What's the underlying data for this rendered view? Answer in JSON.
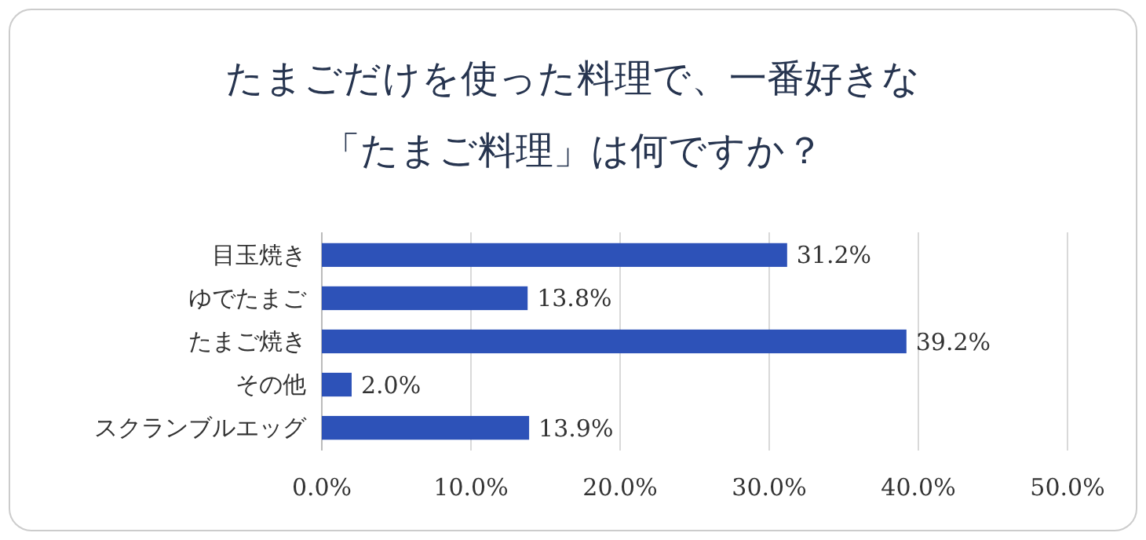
{
  "chart_data": {
    "type": "bar",
    "orientation": "horizontal",
    "title": "たまごだけを使った料理で、一番好きな「たまご料理」は何ですか？",
    "categories": [
      "目玉焼き",
      "ゆでたまご",
      "たまご焼き",
      "その他",
      "スクランブルエッグ"
    ],
    "values": [
      31.2,
      13.8,
      39.2,
      2.0,
      13.9
    ],
    "value_labels": [
      "31.2%",
      "13.8%",
      "39.2%",
      "2.0%",
      "13.9%"
    ],
    "color": "#2d52b8",
    "xlim": [
      0,
      50
    ],
    "xticks": [
      {
        "value": 0,
        "label": "0.0%"
      },
      {
        "value": 10,
        "label": "10.0%"
      },
      {
        "value": 20,
        "label": "20.0%"
      },
      {
        "value": 30,
        "label": "30.0%"
      },
      {
        "value": 40,
        "label": "40.0%"
      },
      {
        "value": 50,
        "label": "50.0%"
      }
    ],
    "grid": "x"
  }
}
